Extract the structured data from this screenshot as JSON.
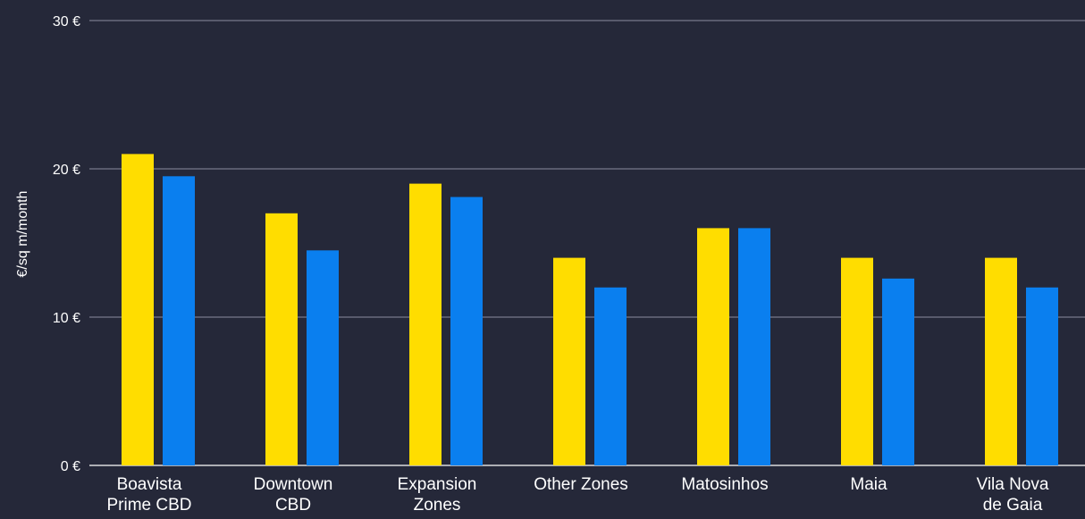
{
  "chart_data": {
    "type": "bar",
    "title": "",
    "xlabel": "",
    "ylabel": "€/sq m/month",
    "ylim": [
      0,
      30
    ],
    "yticks": [
      0,
      10,
      20,
      30
    ],
    "ytick_labels": [
      "0 €",
      "10 €",
      "20 €",
      "30 €"
    ],
    "grid": true,
    "legend": "none",
    "categories": [
      [
        "Boavista",
        "Prime CBD"
      ],
      [
        "Downtown",
        "CBD"
      ],
      [
        "Expansion",
        "Zones"
      ],
      [
        "Other Zones"
      ],
      [
        "Matosinhos"
      ],
      [
        "Maia"
      ],
      [
        "Vila Nova",
        "de Gaia"
      ]
    ],
    "series": [
      {
        "color": "#FFDD00",
        "values": [
          21,
          17,
          19,
          14,
          16,
          14,
          14
        ]
      },
      {
        "color": "#0A7FEF",
        "values": [
          19.5,
          14.5,
          18.1,
          12,
          16,
          12.6,
          12
        ]
      }
    ],
    "colors": {
      "background": "#252839",
      "gridline": "#8a8da0",
      "axis": "#ffffff",
      "text": "#ffffff"
    }
  }
}
